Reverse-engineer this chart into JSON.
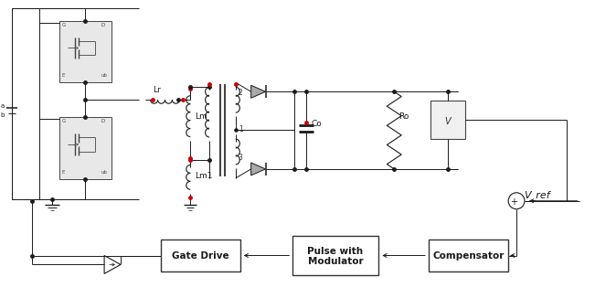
{
  "bg_color": "#ffffff",
  "line_color": "#1a1a1a",
  "red_color": "#cc0000",
  "fig_width": 6.51,
  "fig_height": 3.26,
  "dpi": 100,
  "labels": {
    "Lr": "Lr",
    "Lm": "Lm",
    "Lm1": "Lm1",
    "Co": "Co",
    "Ro": "Ro",
    "V_ref": "V_ref",
    "gate_drive": "Gate Drive",
    "pwm": "Pulse with\nModulator",
    "compensator": "Compensator",
    "winding_1": "1",
    "winding_2": "2",
    "winding_3": "3",
    "label_a": "a",
    "label_b": "b",
    "label_V": "V"
  },
  "colors": {
    "mosfet_fill": "#e8e8e8",
    "mosfet_edge": "#444444",
    "diode_fill": "#888888",
    "box_fill": "#ffffff",
    "box_edge": "#333333",
    "core_color": "#555555",
    "dot_junction": "#111111"
  }
}
